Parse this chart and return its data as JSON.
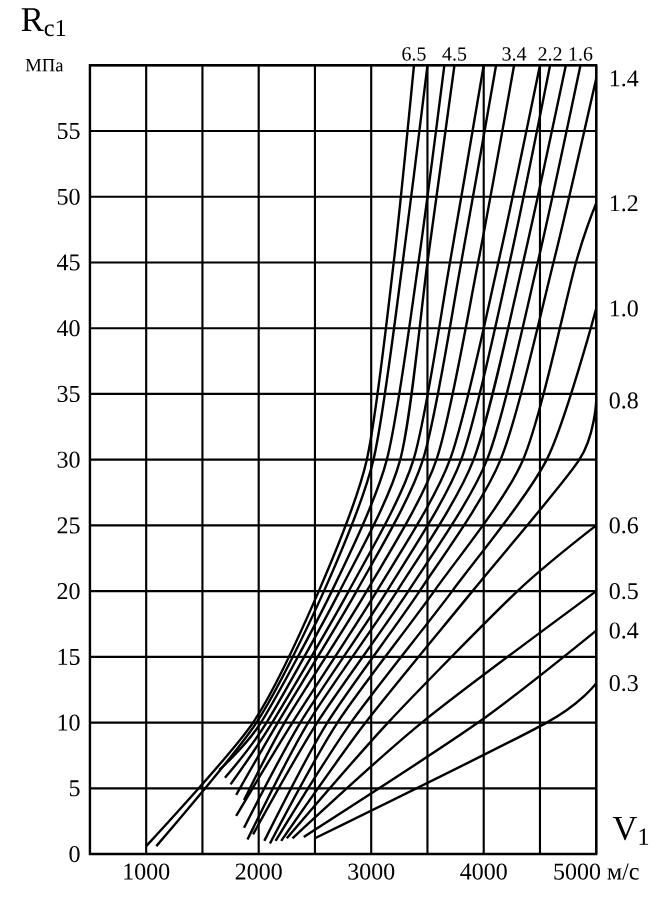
{
  "chart_data": {
    "type": "line",
    "xlabel": "V$_{1}$",
    "ylabel": "R$_{c1}$",
    "annotations": [
      "МПа"
    ],
    "xlim": [
      500,
      5000
    ],
    "ylim": [
      0,
      60
    ],
    "xticks": [
      {
        "value": 1000,
        "label": "1000"
      },
      {
        "value": 1500,
        "label": null
      },
      {
        "value": 2000,
        "label": "2000"
      },
      {
        "value": 2500,
        "label": null
      },
      {
        "value": 3000,
        "label": "3000"
      },
      {
        "value": 3500,
        "label": null
      },
      {
        "value": 4000,
        "label": "4000"
      },
      {
        "value": 4500,
        "label": null
      },
      {
        "value": 5000,
        "label": "5000 м/с"
      }
    ],
    "yticks": [
      0,
      5,
      10,
      15,
      20,
      25,
      30,
      35,
      40,
      45,
      50,
      55,
      {
        "value": 60,
        "label": null
      }
    ],
    "grid": true,
    "marker": "none",
    "line_style": "solid",
    "series": [
      {
        "name": "6.5",
        "color": "#000000",
        "x": [
          1000,
          1950,
          2534,
          2961,
          3200,
          3380
        ],
        "values": [
          0.6,
          10,
          20,
          30,
          45,
          60
        ]
      },
      {
        "color": "#000000",
        "x": [
          1090,
          1980,
          2580,
          3020,
          3280,
          3500
        ],
        "values": [
          0.6,
          10,
          20,
          30,
          45,
          60
        ]
      },
      {
        "color": "#000000",
        "x": [
          1650,
          2020,
          2650,
          3139,
          3420,
          3650
        ],
        "values": [
          6.4,
          10,
          20,
          30,
          45,
          60
        ]
      },
      {
        "name": "4.5",
        "color": "#000000",
        "x": [
          1700,
          2070,
          2720,
          3258,
          3500,
          3740
        ],
        "values": [
          5.8,
          10,
          20,
          30,
          45,
          60
        ]
      },
      {
        "color": "#000000",
        "x": [
          1750,
          2120,
          2800,
          3376,
          3700,
          4000
        ],
        "values": [
          5.3,
          10,
          20,
          30,
          45,
          60
        ]
      },
      {
        "color": "#000000",
        "x": [
          1800,
          2170,
          2870,
          3460,
          3800,
          4110
        ],
        "values": [
          4.5,
          10,
          20,
          30,
          45,
          60
        ]
      },
      {
        "name": "3.4",
        "color": "#000000",
        "x": [
          1870,
          2230,
          2960,
          3580,
          3950,
          4270
        ],
        "values": [
          4.1,
          10,
          20,
          30,
          45,
          60
        ]
      },
      {
        "color": "#000000",
        "x": [
          1800,
          2300,
          3050,
          3700,
          4130,
          4500
        ],
        "values": [
          2.9,
          10,
          20,
          30,
          45,
          60
        ]
      },
      {
        "name": "2.2",
        "color": "#000000",
        "x": [
          1870,
          2370,
          3140,
          3800,
          4230,
          4590
        ],
        "values": [
          2.0,
          10,
          20,
          30,
          45,
          60
        ]
      },
      {
        "color": "#000000",
        "x": [
          1900,
          2440,
          3230,
          3910,
          4350,
          4730
        ],
        "values": [
          1.1,
          10,
          20,
          30,
          45,
          60
        ]
      },
      {
        "name": "1.6",
        "color": "#000000",
        "x": [
          1950,
          2520,
          3330,
          4030,
          4480,
          4860
        ],
        "values": [
          1.5,
          10,
          20,
          30,
          45,
          60
        ]
      },
      {
        "name": "1.4",
        "color": "#000000",
        "x": [
          2050,
          2610,
          3430,
          4150,
          4620,
          5000
        ],
        "values": [
          1.0,
          10,
          20,
          30,
          45,
          59
        ]
      },
      {
        "name": "1.2",
        "color": "#000000",
        "x": [
          2100,
          2700,
          3560,
          4350,
          4820,
          5000
        ],
        "values": [
          0.8,
          10,
          20,
          30,
          45,
          49.5
        ]
      },
      {
        "name": "1.0",
        "color": "#000000",
        "x": [
          2150,
          2820,
          3720,
          4560,
          5000
        ],
        "values": [
          1.0,
          10,
          20,
          30,
          41.5
        ]
      },
      {
        "name": "0.8",
        "color": "#000000",
        "x": [
          2200,
          2950,
          3900,
          4850,
          5000
        ],
        "values": [
          1.0,
          10,
          20,
          30,
          34.5
        ]
      },
      {
        "name": "0.6",
        "color": "#000000",
        "x": [
          2250,
          3150,
          4300,
          5000
        ],
        "values": [
          1.2,
          10,
          20,
          25
        ]
      },
      {
        "name": "0.5",
        "color": "#000000",
        "x": [
          2300,
          3450,
          5000
        ],
        "values": [
          1.2,
          10,
          20
        ]
      },
      {
        "name": "0.4",
        "color": "#000000",
        "x": [
          2400,
          3950,
          5000
        ],
        "values": [
          1.3,
          10,
          17
        ]
      },
      {
        "name": "0.3",
        "color": "#000000",
        "x": [
          2500,
          4560,
          5000
        ],
        "values": [
          1.2,
          10,
          13
        ]
      }
    ]
  }
}
